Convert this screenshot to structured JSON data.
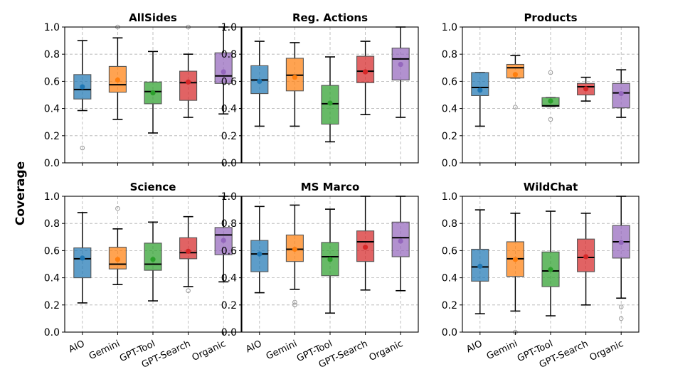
{
  "figure": {
    "ylabel": "Coverage"
  },
  "colors": {
    "AIO": "#1f77b4",
    "Gemini": "#ff7f0e",
    "GPT-Tool": "#2ca02c",
    "GPT-Search": "#d62728",
    "Organic": "#9467bd"
  },
  "chart_data": [
    {
      "type": "box",
      "title": "AllSides",
      "categories": [
        "AIO",
        "Gemini",
        "GPT-Tool",
        "GPT-Search",
        "Organic"
      ],
      "ylim": [
        0,
        1
      ],
      "yticks": [
        "0.0",
        "0.2",
        "0.4",
        "0.6",
        "0.8",
        "1.0"
      ],
      "boxes": [
        {
          "name": "AIO",
          "whislo": 0.385,
          "q1": 0.47,
          "med": 0.54,
          "q3": 0.65,
          "whishi": 0.9,
          "mean": 0.56,
          "fliers": [
            0.11
          ]
        },
        {
          "name": "Gemini",
          "whislo": 0.32,
          "q1": 0.52,
          "med": 0.575,
          "q3": 0.71,
          "whishi": 0.92,
          "mean": 0.61,
          "fliers": [
            1.0
          ]
        },
        {
          "name": "GPT-Tool",
          "whislo": 0.22,
          "q1": 0.435,
          "med": 0.525,
          "q3": 0.595,
          "whishi": 0.82,
          "mean": 0.515,
          "fliers": []
        },
        {
          "name": "GPT-Search",
          "whislo": 0.335,
          "q1": 0.46,
          "med": 0.59,
          "q3": 0.675,
          "whishi": 0.8,
          "mean": 0.595,
          "fliers": [
            1.0
          ]
        },
        {
          "name": "Organic",
          "whislo": 0.36,
          "q1": 0.585,
          "med": 0.64,
          "q3": 0.81,
          "whishi": 1.0,
          "mean": 0.67,
          "fliers": []
        }
      ]
    },
    {
      "type": "box",
      "title": "Reg. Actions",
      "categories": [
        "AIO",
        "Gemini",
        "GPT-Tool",
        "GPT-Search",
        "Organic"
      ],
      "ylim": [
        0,
        1
      ],
      "yticks": [
        "0.0",
        "0.2",
        "0.4",
        "0.6",
        "0.8",
        "1.0"
      ],
      "boxes": [
        {
          "name": "AIO",
          "whislo": 0.27,
          "q1": 0.51,
          "med": 0.61,
          "q3": 0.715,
          "whishi": 0.895,
          "mean": 0.6,
          "fliers": []
        },
        {
          "name": "Gemini",
          "whislo": 0.27,
          "q1": 0.53,
          "med": 0.645,
          "q3": 0.77,
          "whishi": 0.885,
          "mean": 0.63,
          "fliers": []
        },
        {
          "name": "GPT-Tool",
          "whislo": 0.155,
          "q1": 0.285,
          "med": 0.435,
          "q3": 0.57,
          "whishi": 0.78,
          "mean": 0.44,
          "fliers": []
        },
        {
          "name": "GPT-Search",
          "whislo": 0.355,
          "q1": 0.59,
          "med": 0.675,
          "q3": 0.785,
          "whishi": 0.895,
          "mean": 0.67,
          "fliers": []
        },
        {
          "name": "Organic",
          "whislo": 0.335,
          "q1": 0.61,
          "med": 0.765,
          "q3": 0.845,
          "whishi": 1.0,
          "mean": 0.725,
          "fliers": []
        }
      ]
    },
    {
      "type": "box",
      "title": "Products",
      "categories": [
        "AIO",
        "Gemini",
        "GPT-Tool",
        "GPT-Search",
        "Organic"
      ],
      "ylim": [
        0,
        1
      ],
      "yticks": [
        "0.0",
        "0.2",
        "0.4",
        "0.6",
        "0.8",
        "1.0"
      ],
      "boxes": [
        {
          "name": "AIO",
          "whislo": 0.27,
          "q1": 0.495,
          "med": 0.555,
          "q3": 0.665,
          "whishi": 0.665,
          "mean": 0.535,
          "fliers": []
        },
        {
          "name": "Gemini",
          "whislo": 0.625,
          "q1": 0.625,
          "med": 0.7,
          "q3": 0.725,
          "whishi": 0.79,
          "mean": 0.65,
          "fliers": [
            0.41
          ]
        },
        {
          "name": "GPT-Tool",
          "whislo": 0.415,
          "q1": 0.415,
          "med": 0.42,
          "q3": 0.48,
          "whishi": 0.48,
          "mean": 0.455,
          "fliers": [
            0.665,
            0.32
          ]
        },
        {
          "name": "GPT-Search",
          "whislo": 0.455,
          "q1": 0.5,
          "med": 0.56,
          "q3": 0.585,
          "whishi": 0.63,
          "mean": 0.545,
          "fliers": []
        },
        {
          "name": "Organic",
          "whislo": 0.335,
          "q1": 0.405,
          "med": 0.515,
          "q3": 0.585,
          "whishi": 0.685,
          "mean": 0.51,
          "fliers": []
        }
      ]
    },
    {
      "type": "box",
      "title": "Science",
      "categories": [
        "AIO",
        "Gemini",
        "GPT-Tool",
        "GPT-Search",
        "Organic"
      ],
      "ylim": [
        0,
        1
      ],
      "yticks": [
        "0.0",
        "0.2",
        "0.4",
        "0.6",
        "0.8",
        "1.0"
      ],
      "boxes": [
        {
          "name": "AIO",
          "whislo": 0.215,
          "q1": 0.4,
          "med": 0.54,
          "q3": 0.62,
          "whishi": 0.88,
          "mean": 0.545,
          "fliers": []
        },
        {
          "name": "Gemini",
          "whislo": 0.35,
          "q1": 0.465,
          "med": 0.5,
          "q3": 0.625,
          "whishi": 0.76,
          "mean": 0.535,
          "fliers": [
            0.91
          ]
        },
        {
          "name": "GPT-Tool",
          "whislo": 0.23,
          "q1": 0.455,
          "med": 0.5,
          "q3": 0.655,
          "whishi": 0.81,
          "mean": 0.535,
          "fliers": []
        },
        {
          "name": "GPT-Search",
          "whislo": 0.335,
          "q1": 0.54,
          "med": 0.585,
          "q3": 0.695,
          "whishi": 0.85,
          "mean": 0.595,
          "fliers": [
            0.305
          ]
        },
        {
          "name": "Organic",
          "whislo": 0.37,
          "q1": 0.57,
          "med": 0.715,
          "q3": 0.77,
          "whishi": 1.0,
          "mean": 0.675,
          "fliers": []
        }
      ]
    },
    {
      "type": "box",
      "title": "MS Marco",
      "categories": [
        "AIO",
        "Gemini",
        "GPT-Tool",
        "GPT-Search",
        "Organic"
      ],
      "ylim": [
        0,
        1
      ],
      "yticks": [
        "0.0",
        "0.2",
        "0.4",
        "0.6",
        "0.8",
        "1.0"
      ],
      "boxes": [
        {
          "name": "AIO",
          "whislo": 0.29,
          "q1": 0.445,
          "med": 0.575,
          "q3": 0.675,
          "whishi": 0.925,
          "mean": 0.575,
          "fliers": []
        },
        {
          "name": "Gemini",
          "whislo": 0.315,
          "q1": 0.52,
          "med": 0.61,
          "q3": 0.715,
          "whishi": 0.935,
          "mean": 0.61,
          "fliers": [
            0.22,
            0.2
          ]
        },
        {
          "name": "GPT-Tool",
          "whislo": 0.14,
          "q1": 0.415,
          "med": 0.555,
          "q3": 0.66,
          "whishi": 0.905,
          "mean": 0.535,
          "fliers": []
        },
        {
          "name": "GPT-Search",
          "whislo": 0.31,
          "q1": 0.52,
          "med": 0.665,
          "q3": 0.745,
          "whishi": 1.0,
          "mean": 0.625,
          "fliers": []
        },
        {
          "name": "Organic",
          "whislo": 0.305,
          "q1": 0.555,
          "med": 0.695,
          "q3": 0.81,
          "whishi": 1.0,
          "mean": 0.67,
          "fliers": []
        }
      ]
    },
    {
      "type": "box",
      "title": "WildChat",
      "categories": [
        "AIO",
        "Gemini",
        "GPT-Tool",
        "GPT-Search",
        "Organic"
      ],
      "ylim": [
        0,
        1
      ],
      "yticks": [
        "0.0",
        "0.2",
        "0.4",
        "0.6",
        "0.8",
        "1.0"
      ],
      "boxes": [
        {
          "name": "AIO",
          "whislo": 0.135,
          "q1": 0.375,
          "med": 0.48,
          "q3": 0.61,
          "whishi": 0.9,
          "mean": 0.485,
          "fliers": []
        },
        {
          "name": "Gemini",
          "whislo": 0.155,
          "q1": 0.41,
          "med": 0.54,
          "q3": 0.665,
          "whishi": 0.875,
          "mean": 0.535,
          "fliers": [
            0.0
          ]
        },
        {
          "name": "GPT-Tool",
          "whislo": 0.12,
          "q1": 0.335,
          "med": 0.45,
          "q3": 0.59,
          "whishi": 0.89,
          "mean": 0.46,
          "fliers": []
        },
        {
          "name": "GPT-Search",
          "whislo": 0.2,
          "q1": 0.445,
          "med": 0.55,
          "q3": 0.685,
          "whishi": 0.875,
          "mean": 0.555,
          "fliers": []
        },
        {
          "name": "Organic",
          "whislo": 0.25,
          "q1": 0.545,
          "med": 0.665,
          "q3": 0.785,
          "whishi": 1.0,
          "mean": 0.66,
          "fliers": [
            0.185,
            0.1
          ]
        }
      ]
    }
  ]
}
